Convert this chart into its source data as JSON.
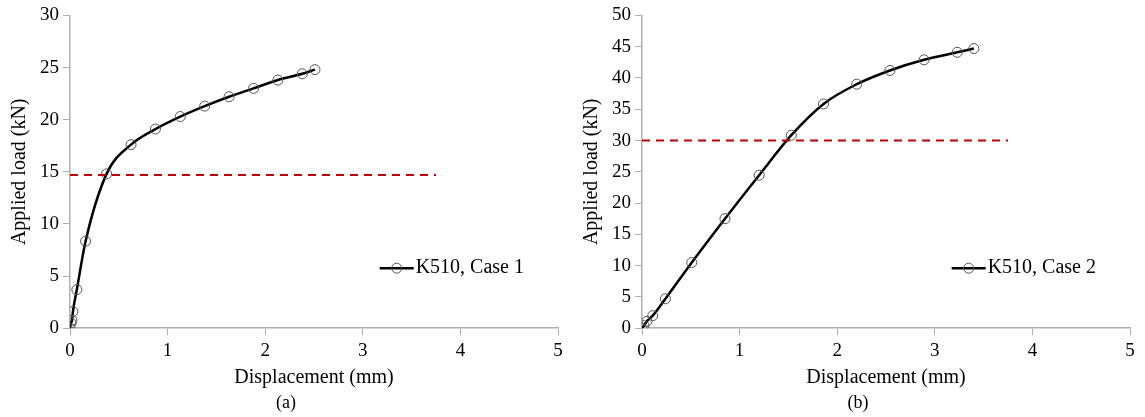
{
  "chart_data": [
    {
      "type": "line",
      "xlabel": "Displacement (mm)",
      "ylabel": "Applied load (kN)",
      "annotations": [
        "(a)"
      ],
      "x": [
        0,
        0.01,
        0.02,
        0.03,
        0.07,
        0.16,
        0.375,
        0.625,
        0.875,
        1.13,
        1.38,
        1.63,
        1.88,
        2.13,
        2.38,
        2.51
      ],
      "series": [
        {
          "name": "K510, Case 1",
          "color": "#000000",
          "values": [
            0,
            0.5,
            0.75,
            1.6,
            3.7,
            8.35,
            14.8,
            17.6,
            19.1,
            20.3,
            21.3,
            22.2,
            23.0,
            23.8,
            24.4,
            24.8
          ]
        }
      ],
      "xlim": [
        0,
        5
      ],
      "xticks": [
        0,
        1,
        2,
        3,
        4,
        5
      ],
      "ylim": [
        0,
        30
      ],
      "yticks": [
        0,
        5,
        10,
        15,
        20,
        25,
        30
      ],
      "ref_lines": [
        {
          "axis": "y",
          "value": 14.7,
          "color": "#c00000",
          "line_style": "dashed"
        }
      ],
      "grid": false,
      "legend": "bottom right",
      "marker": "circle",
      "line_style": "solid"
    },
    {
      "type": "line",
      "xlabel": "Displacement (mm)",
      "ylabel": "Applied load (kN)",
      "annotations": [
        "(b)"
      ],
      "x": [
        0,
        0.02,
        0.05,
        0.11,
        0.24,
        0.51,
        0.85,
        1.2,
        1.53,
        1.86,
        2.2,
        2.54,
        2.89,
        3.23,
        3.4
      ],
      "series": [
        {
          "name": "K510, Case 2",
          "color": "#000000",
          "values": [
            0,
            0.4,
            1.1,
            2.0,
            4.7,
            10.5,
            17.5,
            24.45,
            30.85,
            35.85,
            39.0,
            41.2,
            42.9,
            44.1,
            44.7
          ]
        }
      ],
      "xlim": [
        0,
        5
      ],
      "xticks": [
        0,
        1,
        2,
        3,
        4,
        5
      ],
      "ylim": [
        0,
        50
      ],
      "yticks": [
        0,
        5,
        10,
        15,
        20,
        25,
        30,
        35,
        40,
        45,
        50
      ],
      "ref_lines": [
        {
          "axis": "y",
          "value": 30,
          "color": "#c00000",
          "line_style": "dashed"
        }
      ],
      "grid": false,
      "legend": "bottom right",
      "marker": "circle",
      "line_style": "solid"
    }
  ]
}
